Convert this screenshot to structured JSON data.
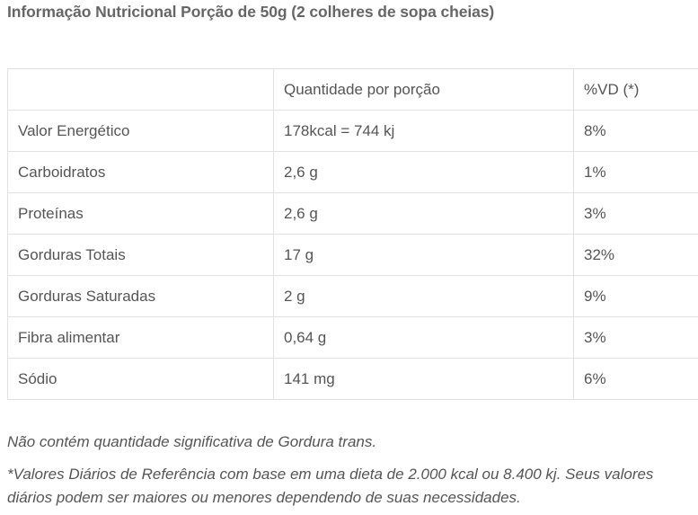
{
  "title": "Informação Nutricional Porção de 50g (2 colheres de sopa cheias)",
  "table": {
    "headers": [
      "",
      "Quantidade por porção",
      "%VD (*)"
    ],
    "rows": [
      {
        "name": "Valor Energético",
        "amount": "178kcal = 744 kj",
        "dv": "8%"
      },
      {
        "name": "Carboidratos",
        "amount": "2,6 g",
        "dv": "1%"
      },
      {
        "name": "Proteínas",
        "amount": "2,6 g",
        "dv": "3%"
      },
      {
        "name": "Gorduras Totais",
        "amount": "17 g",
        "dv": "32%"
      },
      {
        "name": "Gorduras Saturadas",
        "amount": "2 g",
        "dv": "9%"
      },
      {
        "name": "Fibra alimentar",
        "amount": "0,64 g",
        "dv": "3%"
      },
      {
        "name": "Sódio",
        "amount": "141 mg",
        "dv": "6%"
      }
    ]
  },
  "notes": {
    "trans_fat": "Não contém quantidade significativa de Gordura trans.",
    "daily_values": "*Valores Diários de Referência com base em uma dieta de 2.000 kcal ou 8.400 kj. Seus valores diários podem ser maiores ou menores dependendo de suas necessidades."
  }
}
